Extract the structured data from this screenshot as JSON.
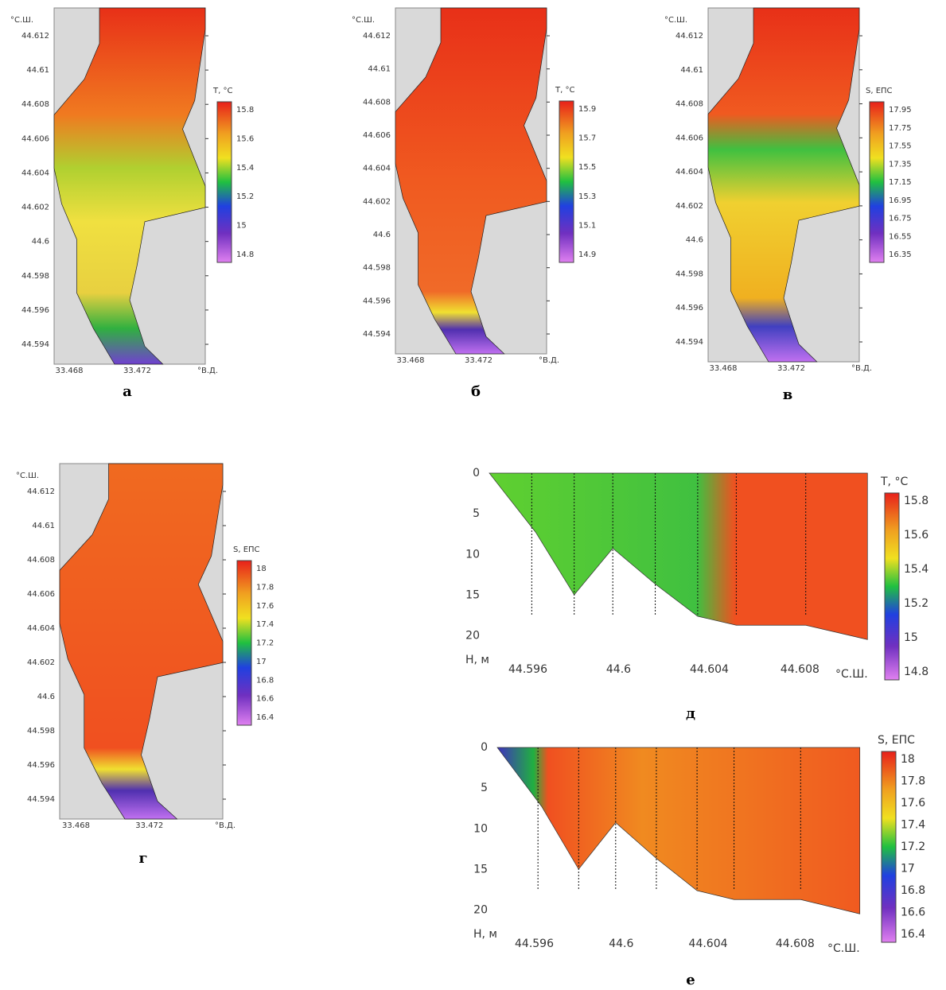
{
  "panels": [
    {
      "label": "а",
      "y_unit": "°С.Ш.",
      "x_unit": "°В.Д.",
      "yticks": [
        "44.612",
        "44.61",
        "44.608",
        "44.606",
        "44.604",
        "44.602",
        "44.6",
        "44.598",
        "44.596",
        "44.594"
      ],
      "xticks": [
        "33.468",
        "33.472"
      ],
      "colorbar": {
        "title": "T, °C",
        "ticks": [
          "15.8",
          "15.6",
          "15.4",
          "15.2",
          "15",
          "14.8"
        ]
      }
    },
    {
      "label": "б",
      "y_unit": "°С.Ш.",
      "x_unit": "°В.Д.",
      "yticks": [
        "44.612",
        "44.61",
        "44.608",
        "44.606",
        "44.604",
        "44.602",
        "44.6",
        "44.598",
        "44.596",
        "44.594"
      ],
      "xticks": [
        "33.468",
        "33.472"
      ],
      "colorbar": {
        "title": "T, °C",
        "ticks": [
          "15.9",
          "15.7",
          "15.5",
          "15.3",
          "15.1",
          "14.9"
        ]
      }
    },
    {
      "label": "в",
      "y_unit": "°С.Ш.",
      "x_unit": "°В.Д.",
      "yticks": [
        "44.612",
        "44.61",
        "44.608",
        "44.606",
        "44.604",
        "44.602",
        "44.6",
        "44.598",
        "44.596",
        "44.594"
      ],
      "xticks": [
        "33.468",
        "33.472"
      ],
      "colorbar": {
        "title": "S, ЕПС",
        "ticks": [
          "17.95",
          "17.75",
          "17.55",
          "17.35",
          "17.15",
          "16.95",
          "16.75",
          "16.55",
          "16.35"
        ]
      }
    },
    {
      "label": "г",
      "y_unit": "°С.Ш.",
      "x_unit": "°В.Д.",
      "yticks": [
        "44.612",
        "44.61",
        "44.608",
        "44.606",
        "44.604",
        "44.602",
        "44.6",
        "44.598",
        "44.596",
        "44.594"
      ],
      "xticks": [
        "33.468",
        "33.472"
      ],
      "colorbar": {
        "title": "S, ЕПС",
        "ticks": [
          "18",
          "17.8",
          "17.6",
          "17.4",
          "17.2",
          "17",
          "16.8",
          "16.6",
          "16.4"
        ]
      }
    },
    {
      "label": "д",
      "y_unit": "H, м",
      "x_unit": "°С.Ш.",
      "yticks": [
        "0",
        "5",
        "10",
        "15",
        "20"
      ],
      "xticks": [
        "44.596",
        "44.6",
        "44.604",
        "44.608"
      ],
      "colorbar": {
        "title": "T, °C",
        "ticks": [
          "15.8",
          "15.6",
          "15.4",
          "15.2",
          "15",
          "14.8"
        ]
      }
    },
    {
      "label": "е",
      "y_unit": "H, м",
      "x_unit": "°С.Ш.",
      "yticks": [
        "0",
        "5",
        "10",
        "15",
        "20"
      ],
      "xticks": [
        "44.596",
        "44.6",
        "44.604",
        "44.608"
      ],
      "colorbar": {
        "title": "S, ЕПС",
        "ticks": [
          "18",
          "17.8",
          "17.6",
          "17.4",
          "17.2",
          "17",
          "16.8",
          "16.6",
          "16.4"
        ]
      }
    }
  ]
}
